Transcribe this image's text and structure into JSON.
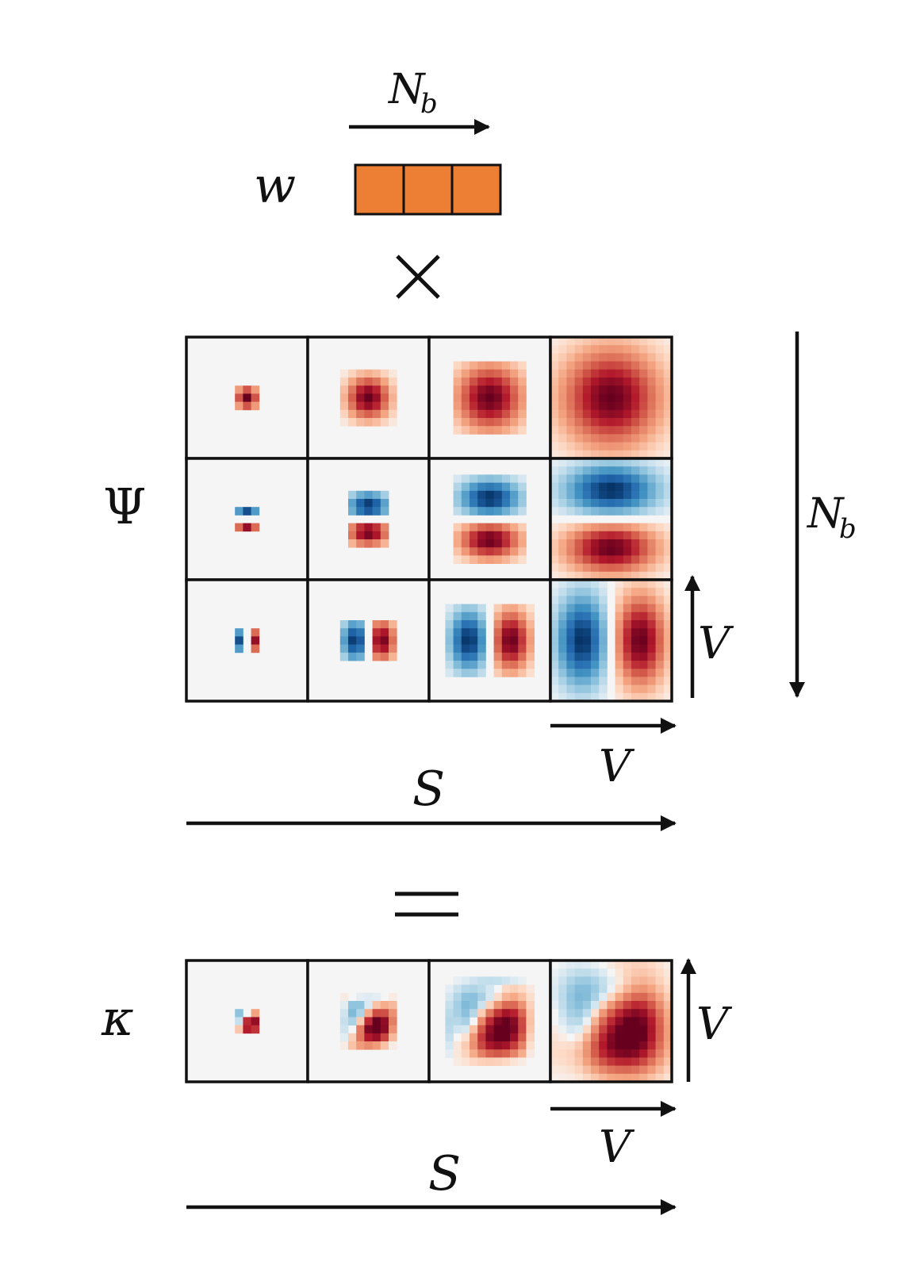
{
  "weights": {
    "label": "w",
    "count": 3,
    "color": "#ed7f34",
    "dim_label": {
      "base": "N",
      "sub": "b"
    }
  },
  "operators": {
    "times": "×",
    "equals": "="
  },
  "basis": {
    "label": "Ψ",
    "rows": 3,
    "columns": 4,
    "row_dim_label": {
      "base": "N",
      "sub": "b"
    },
    "col_dim_label": "S",
    "cell_dim_label": "V",
    "patterns": [
      "gaussian",
      "vertical-dipole",
      "horizontal-dipole"
    ],
    "sizes": [
      1,
      2,
      3,
      4
    ]
  },
  "kernel": {
    "label": "κ",
    "columns": 4,
    "col_dim_label": "S",
    "cell_dim_label": "V"
  },
  "colors": {
    "positive": "#67001f",
    "negative": "#053061",
    "neutral": "#f5f5f5",
    "grid": "#111111"
  }
}
